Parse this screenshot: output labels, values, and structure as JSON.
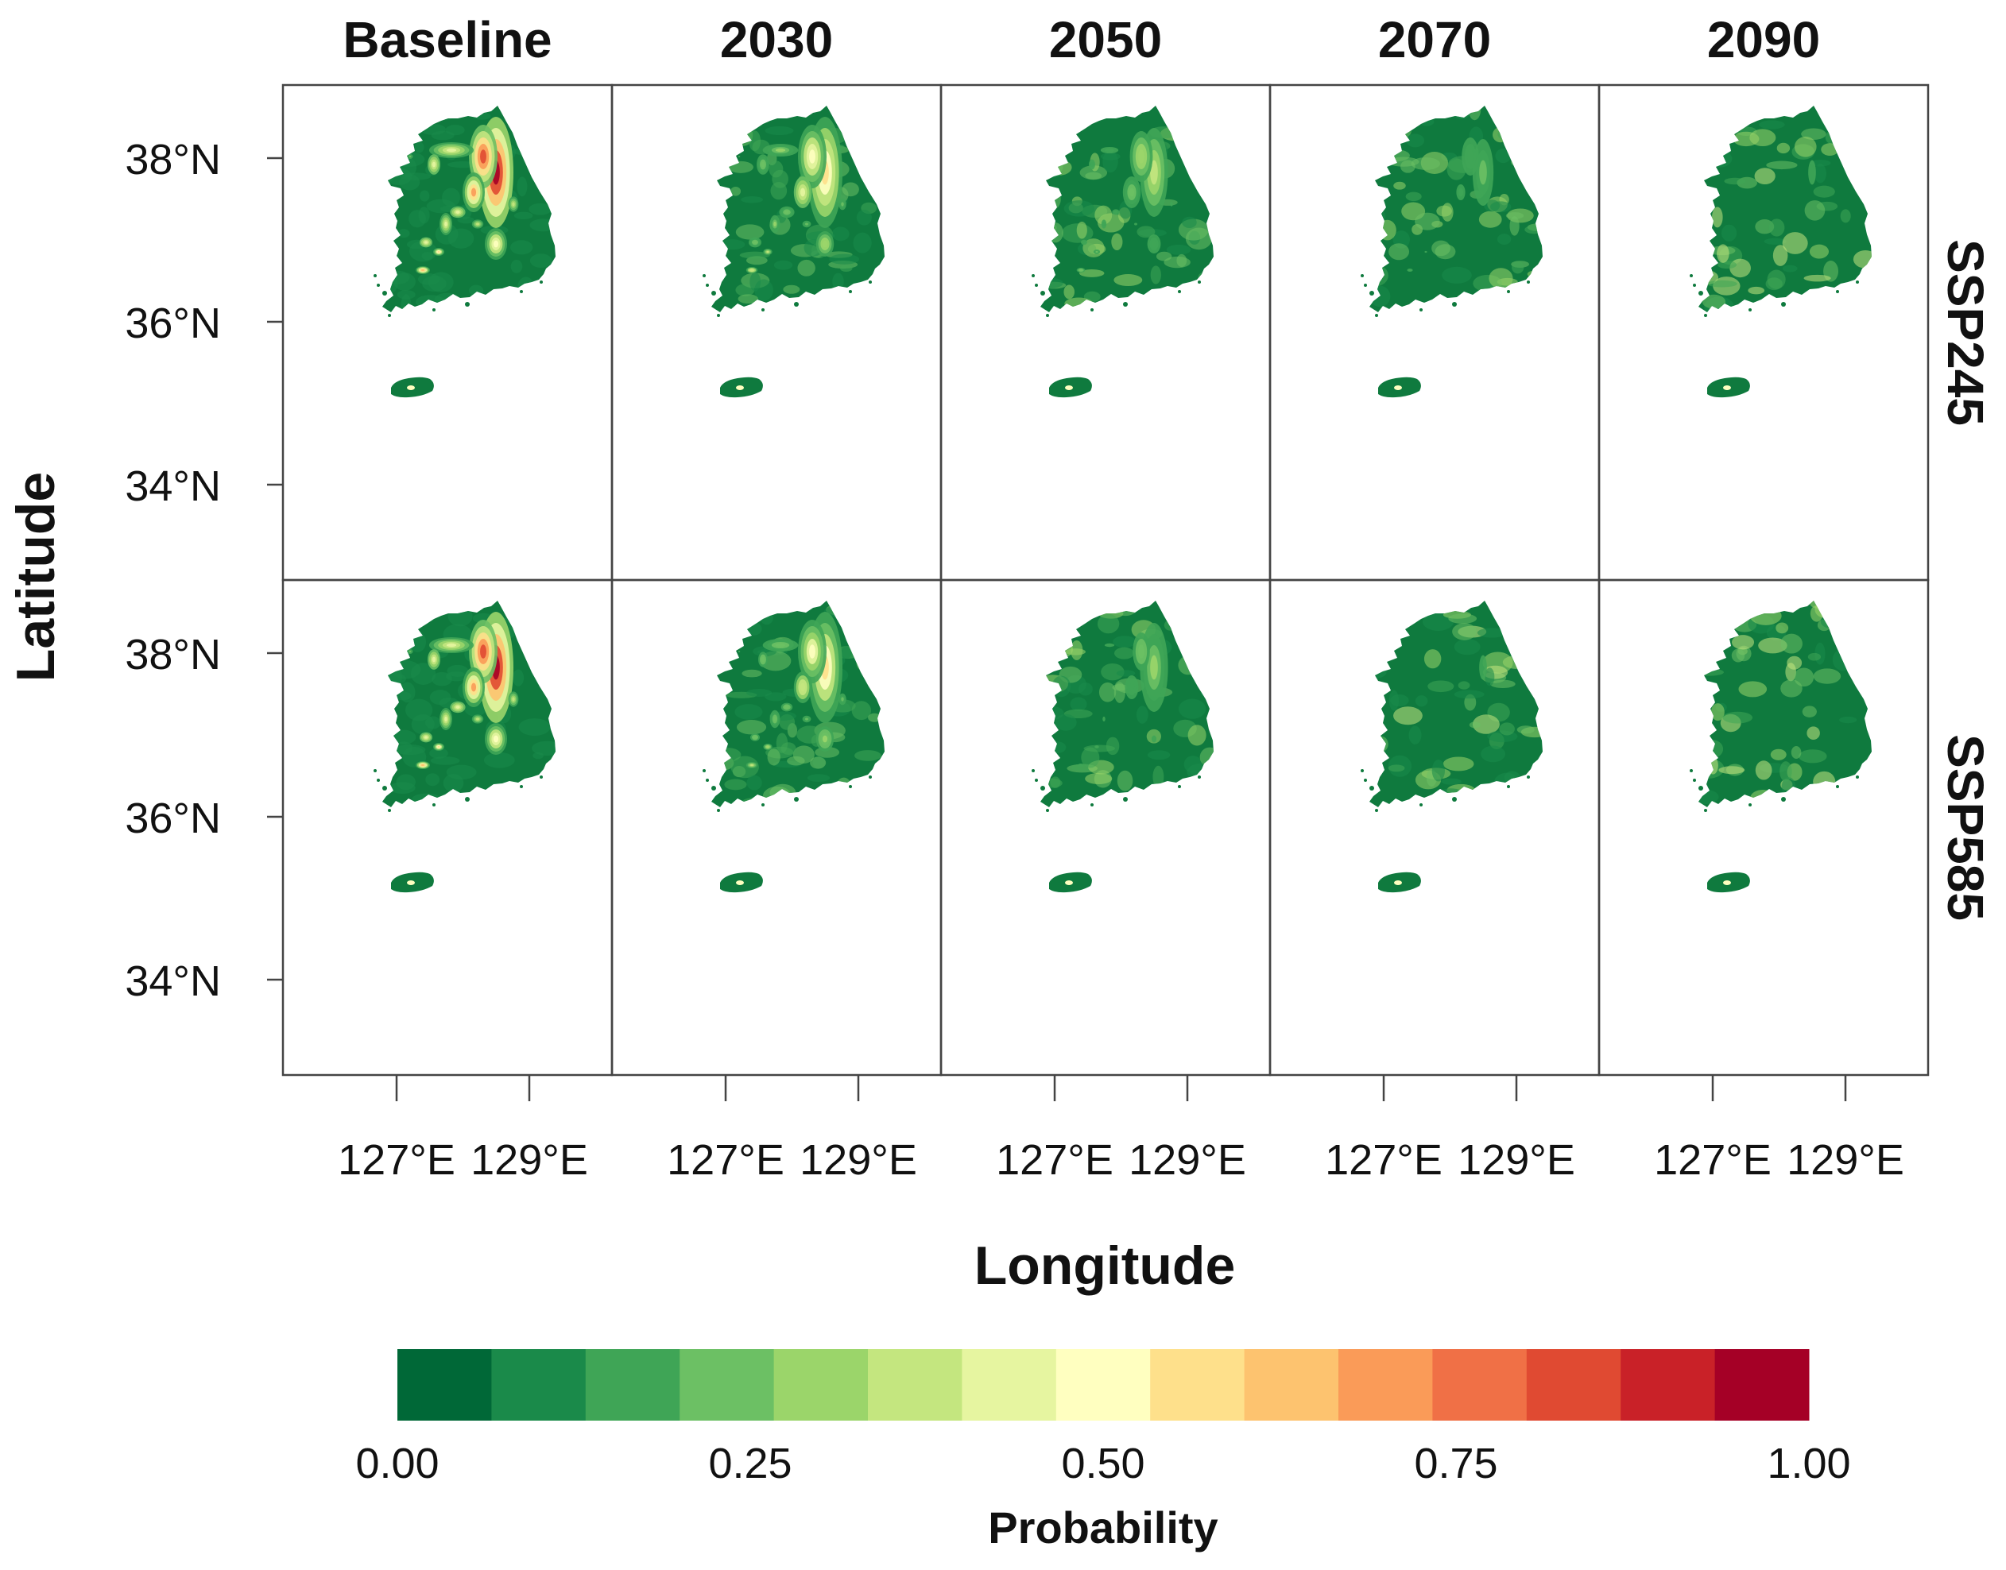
{
  "columns": [
    "Baseline",
    "2030",
    "2050",
    "2070",
    "2090"
  ],
  "rows": [
    "SSP245",
    "SSP585"
  ],
  "axes": {
    "xlabel": "Longitude",
    "ylabel": "Latitude",
    "yticks": [
      "38°N",
      "36°N",
      "34°N"
    ],
    "xticks": [
      "127°E",
      "129°E"
    ]
  },
  "legend": {
    "title": "Probability",
    "ticks": [
      "0.00",
      "0.25",
      "0.50",
      "0.75",
      "1.00"
    ],
    "colors": [
      "#006837",
      "#1a8a4a",
      "#3fa556",
      "#6cc064",
      "#9bd56a",
      "#c4e67f",
      "#e6f5a0",
      "#ffffc0",
      "#fee08b",
      "#fdc36f",
      "#fa9b58",
      "#f07046",
      "#e04a32",
      "#c92128",
      "#a50026"
    ]
  },
  "panel_intensity": [
    [
      1.0,
      0.6,
      0.35,
      0.2,
      0.12
    ],
    [
      1.0,
      0.55,
      0.25,
      0.12,
      0.06
    ]
  ],
  "colors": {
    "land_base": "#0f7a3e",
    "frame": "#444444",
    "text": "#111111"
  }
}
